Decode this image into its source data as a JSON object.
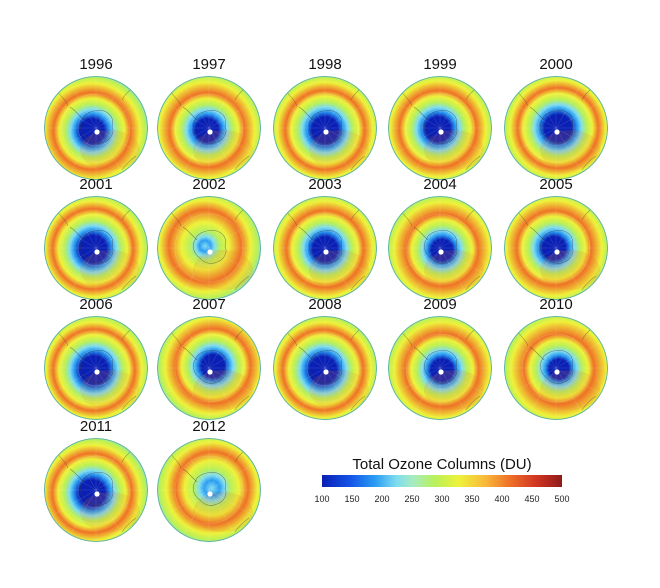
{
  "panels": [
    {
      "year": "1996"
    },
    {
      "year": "1997"
    },
    {
      "year": "1998"
    },
    {
      "year": "1999"
    },
    {
      "year": "2000"
    },
    {
      "year": "2001"
    },
    {
      "year": "2002"
    },
    {
      "year": "2003"
    },
    {
      "year": "2004"
    },
    {
      "year": "2005"
    },
    {
      "year": "2006"
    },
    {
      "year": "2007"
    },
    {
      "year": "2008"
    },
    {
      "year": "2009"
    },
    {
      "year": "2010"
    },
    {
      "year": "2011"
    },
    {
      "year": "2012"
    }
  ],
  "legend": {
    "title": "Total Ozone Columns (DU)",
    "ticks": [
      "100",
      "150",
      "200",
      "250",
      "300",
      "350",
      "400",
      "450",
      "500"
    ],
    "min": 100,
    "max": 500
  },
  "colors": {
    "very_low": "#0a1fb4",
    "low": "#2a9cf2",
    "mid_low": "#7fdcef",
    "mid": "#b8f05a",
    "mid_high": "#eef23a",
    "high": "#ef7228",
    "very_high": "#8e1a1a",
    "coastline": "#3a3a3a",
    "pole_marker": "#ffffff"
  }
}
